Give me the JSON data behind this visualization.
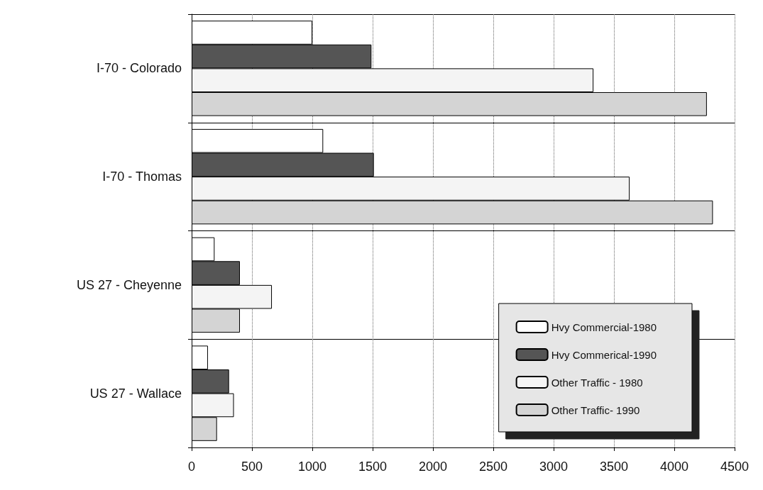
{
  "chart_data": {
    "type": "bar",
    "orientation": "horizontal",
    "categories": [
      "I-70 - Colorado",
      "I-70 - Thomas",
      "US 27 - Cheyenne",
      "US 27 - Wallace"
    ],
    "series": [
      {
        "name": "Hvy Commercial-1980",
        "color": "#ffffff",
        "values": [
          1000,
          1090,
          190,
          135
        ]
      },
      {
        "name": "Hvy Commerical-1990",
        "color": "#555555",
        "values": [
          1490,
          1510,
          400,
          310
        ]
      },
      {
        "name": "Other Traffic - 1980",
        "color": "#f4f4f4",
        "values": [
          3330,
          3630,
          665,
          350
        ]
      },
      {
        "name": "Other Traffic- 1990",
        "color": "#d4d4d4",
        "values": [
          4270,
          4320,
          400,
          210
        ]
      }
    ],
    "xlim": [
      0,
      4500
    ],
    "xticks": [
      0,
      500,
      1000,
      1500,
      2000,
      2500,
      3000,
      3500,
      4000,
      4500
    ],
    "grid": true,
    "legend": "bottom right"
  }
}
